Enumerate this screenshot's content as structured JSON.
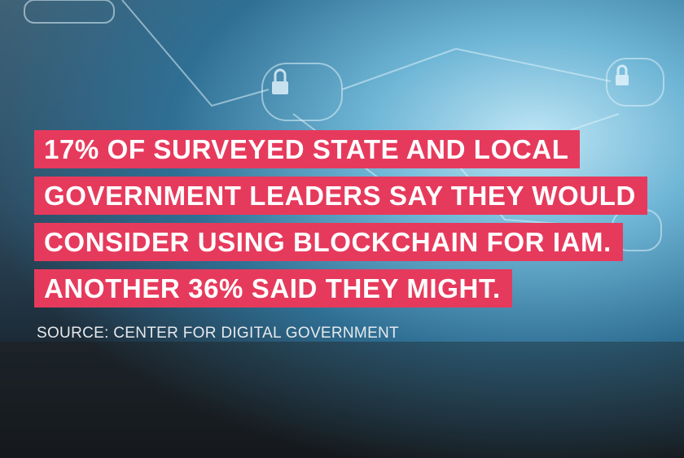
{
  "headline": [
    "17% OF SURVEYED STATE AND LOCAL",
    "GOVERNMENT LEADERS SAY THEY WOULD",
    "CONSIDER USING BLOCKCHAIN FOR IAM.",
    "ANOTHER 36% SAID THEY MIGHT."
  ],
  "source": "SOURCE: CENTER FOR DIGITAL GOVERNMENT"
}
